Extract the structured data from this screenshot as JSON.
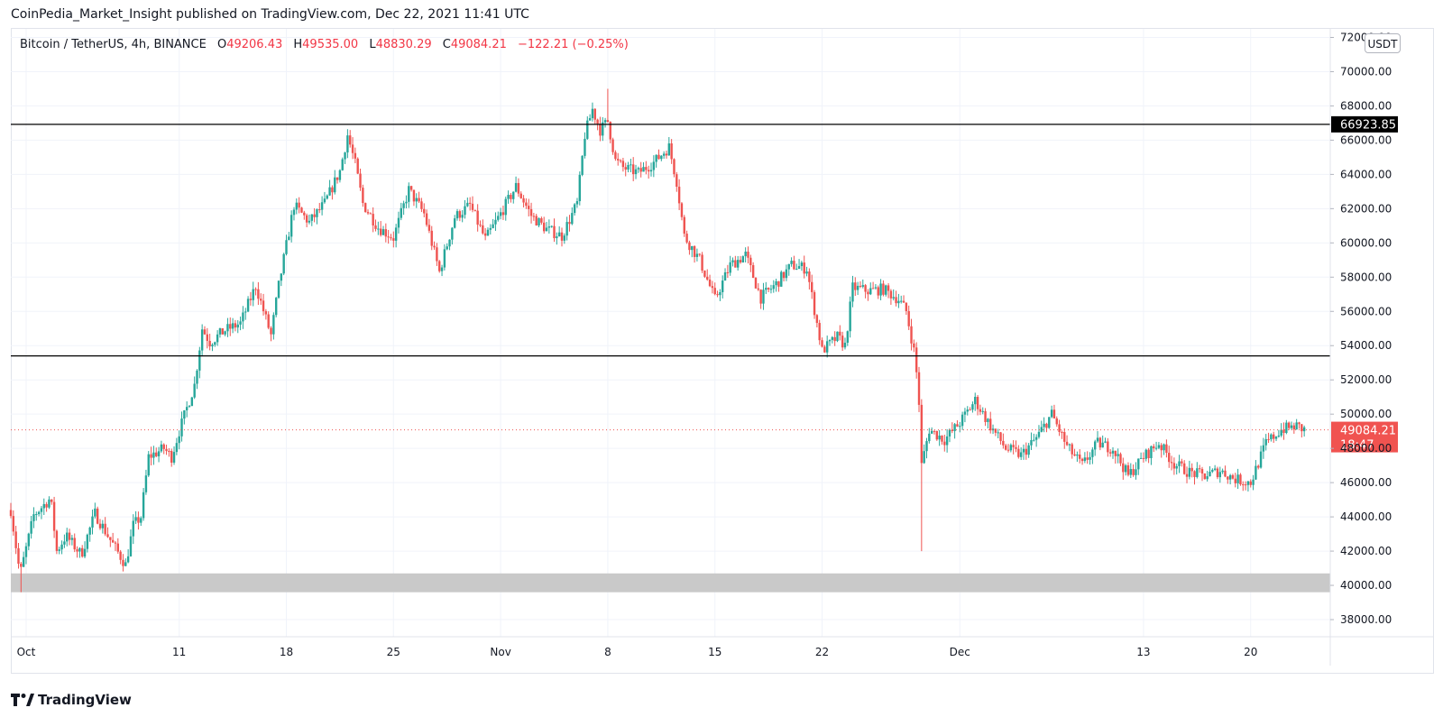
{
  "header": {
    "publish_text": "CoinPedia_Market_Insight published on TradingView.com, Dec 22, 2021 11:41 UTC"
  },
  "legend": {
    "symbol": "Bitcoin / TetherUS, 4h, BINANCE",
    "open_key": "O",
    "open": "49206.43",
    "high_key": "H",
    "high": "49535.00",
    "low_key": "L",
    "low": "48830.29",
    "close_key": "C",
    "close": "49084.21",
    "change": "−122.21 (−0.25%)"
  },
  "unit_badge": "USDT",
  "footer": {
    "brand": "TradingView"
  },
  "colors": {
    "up": "#26a69a",
    "down": "#ef5350",
    "level_line": "#000000",
    "zone": "#c9c9c9",
    "price_tag": "#f05350",
    "grid": "#f0f3fa"
  },
  "chart_data": {
    "type": "candlestick",
    "title": "Bitcoin / TetherUS, 4h, BINANCE",
    "x_tick_labels": [
      {
        "label": "Oct",
        "day": 14
      },
      {
        "label": "11",
        "day": 24
      },
      {
        "label": "18",
        "day": 31
      },
      {
        "label": "25",
        "day": 38
      },
      {
        "label": "Nov",
        "day": 45
      },
      {
        "label": "8",
        "day": 52
      },
      {
        "label": "15",
        "day": 59
      },
      {
        "label": "22",
        "day": 66
      },
      {
        "label": "Dec",
        "day": 75
      },
      {
        "label": "13",
        "day": 87
      },
      {
        "label": "20",
        "day": 94
      }
    ],
    "y_ticks": [
      38000,
      40000,
      42000,
      44000,
      46000,
      48000,
      50000,
      52000,
      54000,
      56000,
      58000,
      60000,
      62000,
      64000,
      66000,
      68000,
      70000,
      72000
    ],
    "y_tick_labels": [
      "38000.00",
      "40000.00",
      "42000.00",
      "44000.00",
      "46000.00",
      "48000.00",
      "50000.00",
      "52000.00",
      "54000.00",
      "56000.00",
      "58000.00",
      "60000.00",
      "62000.00",
      "64000.00",
      "66000.00",
      "68000.00",
      "70000.00",
      "72000.00"
    ],
    "ylim": [
      37000,
      72500
    ],
    "xlim_days": [
      13,
      99.2
    ],
    "horizontal_levels": [
      {
        "value": 66923.85,
        "label": "66923.85"
      },
      {
        "value": 53400
      }
    ],
    "support_zone": [
      39600,
      40700
    ],
    "last_price": {
      "value": 49084.21,
      "label": "49084.21",
      "countdown": "18:47"
    },
    "price_path": [
      {
        "day": 13.0,
        "price": 44400
      },
      {
        "day": 13.6,
        "price": 40600
      },
      {
        "day": 14.5,
        "price": 44100
      },
      {
        "day": 15.6,
        "price": 45100
      },
      {
        "day": 16.0,
        "price": 42000
      },
      {
        "day": 16.6,
        "price": 42900
      },
      {
        "day": 17.6,
        "price": 41800
      },
      {
        "day": 18.5,
        "price": 44200
      },
      {
        "day": 19.6,
        "price": 42500
      },
      {
        "day": 20.5,
        "price": 41200
      },
      {
        "day": 21.0,
        "price": 43500
      },
      {
        "day": 21.5,
        "price": 44000
      },
      {
        "day": 22.0,
        "price": 47500
      },
      {
        "day": 23.0,
        "price": 48000
      },
      {
        "day": 23.5,
        "price": 47500
      },
      {
        "day": 24.0,
        "price": 49000
      },
      {
        "day": 25.0,
        "price": 51700
      },
      {
        "day": 25.5,
        "price": 55000
      },
      {
        "day": 26.0,
        "price": 54200
      },
      {
        "day": 27.0,
        "price": 54900
      },
      {
        "day": 28.0,
        "price": 55300
      },
      {
        "day": 29.0,
        "price": 57500
      },
      {
        "day": 30.0,
        "price": 54600
      },
      {
        "day": 30.5,
        "price": 57500
      },
      {
        "day": 31.5,
        "price": 62200
      },
      {
        "day": 32.5,
        "price": 61200
      },
      {
        "day": 33.5,
        "price": 62300
      },
      {
        "day": 34.5,
        "price": 64200
      },
      {
        "day": 35.0,
        "price": 66300
      },
      {
        "day": 35.5,
        "price": 64600
      },
      {
        "day": 36.0,
        "price": 62300
      },
      {
        "day": 37.0,
        "price": 60900
      },
      {
        "day": 38.0,
        "price": 60300
      },
      {
        "day": 39.0,
        "price": 63100
      },
      {
        "day": 40.0,
        "price": 61700
      },
      {
        "day": 41.0,
        "price": 58300
      },
      {
        "day": 42.0,
        "price": 61500
      },
      {
        "day": 43.0,
        "price": 62200
      },
      {
        "day": 44.0,
        "price": 60200
      },
      {
        "day": 45.0,
        "price": 61700
      },
      {
        "day": 46.0,
        "price": 63300
      },
      {
        "day": 47.0,
        "price": 61600
      },
      {
        "day": 48.0,
        "price": 60800
      },
      {
        "day": 49.0,
        "price": 60400
      },
      {
        "day": 50.0,
        "price": 62300
      },
      {
        "day": 50.5,
        "price": 66300
      },
      {
        "day": 51.0,
        "price": 67800
      },
      {
        "day": 51.5,
        "price": 66600
      },
      {
        "day": 52.0,
        "price": 67100
      },
      {
        "day": 52.5,
        "price": 64800
      },
      {
        "day": 53.0,
        "price": 64400
      },
      {
        "day": 54.0,
        "price": 64100
      },
      {
        "day": 55.0,
        "price": 64700
      },
      {
        "day": 56.0,
        "price": 65600
      },
      {
        "day": 56.5,
        "price": 63600
      },
      {
        "day": 57.0,
        "price": 60400
      },
      {
        "day": 58.0,
        "price": 59000
      },
      {
        "day": 59.0,
        "price": 56700
      },
      {
        "day": 60.0,
        "price": 58700
      },
      {
        "day": 61.0,
        "price": 59300
      },
      {
        "day": 62.0,
        "price": 56800
      },
      {
        "day": 63.0,
        "price": 57600
      },
      {
        "day": 64.0,
        "price": 58700
      },
      {
        "day": 65.0,
        "price": 58500
      },
      {
        "day": 66.0,
        "price": 53700
      },
      {
        "day": 67.0,
        "price": 54500
      },
      {
        "day": 67.5,
        "price": 54000
      },
      {
        "day": 68.0,
        "price": 57400
      },
      {
        "day": 69.0,
        "price": 57200
      },
      {
        "day": 70.0,
        "price": 57300
      },
      {
        "day": 71.0,
        "price": 56700
      },
      {
        "day": 71.5,
        "price": 56000
      },
      {
        "day": 72.0,
        "price": 53700
      },
      {
        "day": 72.3,
        "price": 51400
      },
      {
        "day": 72.5,
        "price": 47000
      },
      {
        "day": 73.0,
        "price": 49100
      },
      {
        "day": 74.0,
        "price": 48500
      },
      {
        "day": 75.0,
        "price": 49500
      },
      {
        "day": 76.0,
        "price": 50800
      },
      {
        "day": 77.0,
        "price": 49300
      },
      {
        "day": 78.0,
        "price": 48000
      },
      {
        "day": 79.0,
        "price": 47600
      },
      {
        "day": 80.0,
        "price": 48600
      },
      {
        "day": 81.0,
        "price": 50000
      },
      {
        "day": 82.0,
        "price": 48100
      },
      {
        "day": 83.0,
        "price": 47000
      },
      {
        "day": 84.0,
        "price": 48300
      },
      {
        "day": 85.0,
        "price": 48000
      },
      {
        "day": 86.0,
        "price": 46400
      },
      {
        "day": 87.0,
        "price": 47500
      },
      {
        "day": 88.0,
        "price": 48300
      },
      {
        "day": 89.0,
        "price": 47100
      },
      {
        "day": 90.0,
        "price": 46600
      },
      {
        "day": 91.0,
        "price": 46400
      },
      {
        "day": 92.0,
        "price": 46700
      },
      {
        "day": 93.0,
        "price": 46200
      },
      {
        "day": 94.0,
        "price": 46000
      },
      {
        "day": 95.0,
        "price": 48300
      },
      {
        "day": 96.0,
        "price": 49100
      },
      {
        "day": 97.0,
        "price": 49300
      },
      {
        "day": 97.5,
        "price": 49084.21
      }
    ],
    "wick_extremes": [
      {
        "day": 13.6,
        "low": 39600
      },
      {
        "day": 52.0,
        "high": 69000
      },
      {
        "day": 72.5,
        "low": 42000
      }
    ]
  }
}
